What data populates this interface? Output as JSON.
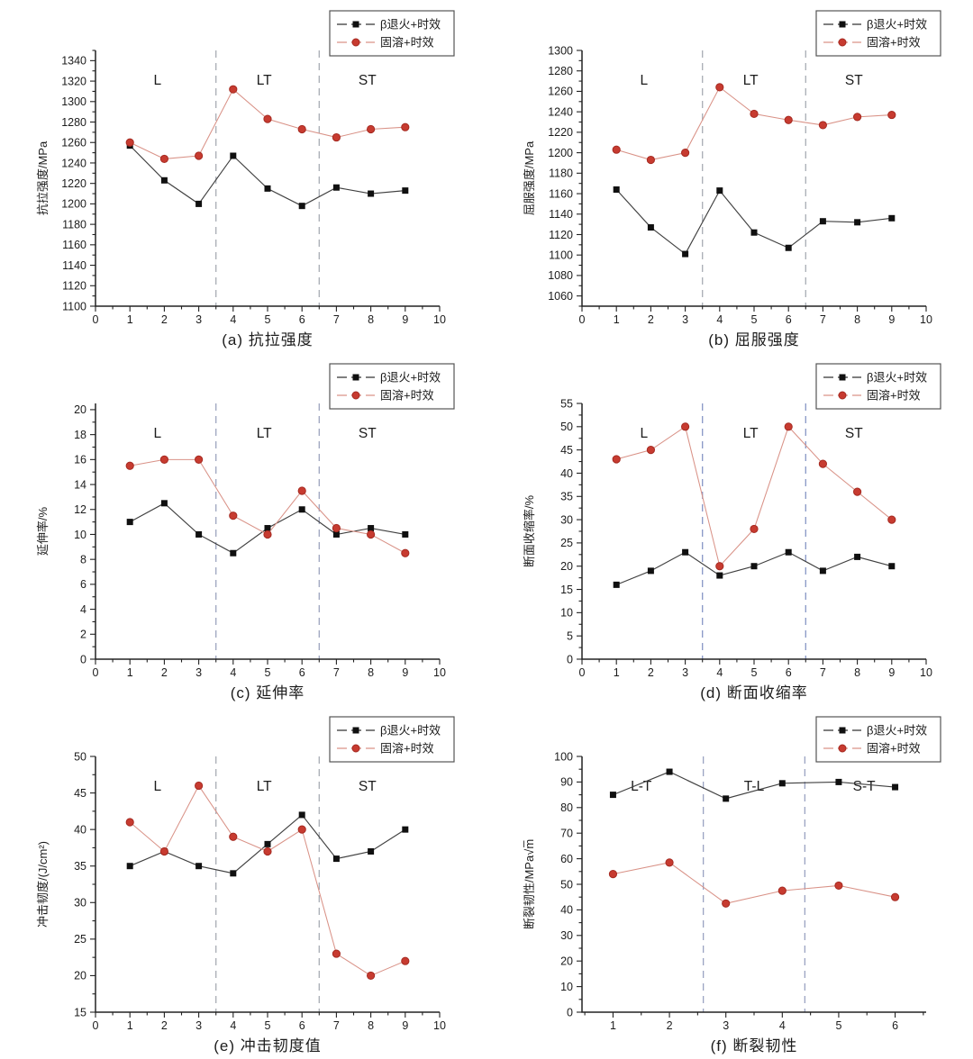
{
  "page": {
    "background": "#ffffff"
  },
  "colors": {
    "axis": "#222222",
    "text": "#1c1c1c",
    "legend_border": "#555555",
    "series_black": {
      "line": "#404040",
      "marker": "#101010"
    },
    "series_red": {
      "line": "#d99287",
      "marker": "#c73b30",
      "marker_edge": "#a52a21"
    }
  },
  "legend": {
    "items": [
      {
        "label": "β退火+时效",
        "marker": "square",
        "color": "#101010"
      },
      {
        "label": "固溶+时效",
        "marker": "circle",
        "color": "#c73b30"
      }
    ]
  },
  "chart_data": [
    {
      "id": "a",
      "type": "line",
      "caption": "(a) 抗拉强度",
      "ylabel": "抗拉强度/MPa",
      "xlabel": "",
      "xlim": [
        0,
        10
      ],
      "ylim": [
        1100,
        1350
      ],
      "xticks": [
        0,
        1,
        2,
        3,
        4,
        5,
        6,
        7,
        8,
        9,
        10
      ],
      "yticks": [
        1100,
        1120,
        1140,
        1160,
        1180,
        1200,
        1220,
        1240,
        1260,
        1280,
        1300,
        1320,
        1340
      ],
      "x_minor": 0.5,
      "y_minor": 10,
      "x": [
        1,
        2,
        3,
        4,
        5,
        6,
        7,
        8,
        9
      ],
      "series": [
        {
          "name": "β退火+时效",
          "marker": "square",
          "values": [
            1257,
            1223,
            1200,
            1247,
            1215,
            1198,
            1216,
            1210,
            1213
          ]
        },
        {
          "name": "固溶+时效",
          "marker": "circle",
          "values": [
            1260,
            1244,
            1247,
            1312,
            1283,
            1273,
            1265,
            1273,
            1275
          ]
        }
      ],
      "dividers": [
        3.5,
        6.5
      ],
      "divider_color": "#a8acb4",
      "regions": [
        {
          "label": "L",
          "x": 1.8
        },
        {
          "label": "LT",
          "x": 4.9
        },
        {
          "label": "ST",
          "x": 7.9
        }
      ]
    },
    {
      "id": "b",
      "type": "line",
      "caption": "(b) 屈服强度",
      "ylabel": "屈服强度/MPa",
      "xlabel": "",
      "xlim": [
        0,
        10
      ],
      "ylim": [
        1050,
        1300
      ],
      "xticks": [
        0,
        1,
        2,
        3,
        4,
        5,
        6,
        7,
        8,
        9,
        10
      ],
      "yticks": [
        1060,
        1080,
        1100,
        1120,
        1140,
        1160,
        1180,
        1200,
        1220,
        1240,
        1260,
        1280,
        1300
      ],
      "x_minor": 0.5,
      "y_minor": 10,
      "x": [
        1,
        2,
        3,
        4,
        5,
        6,
        7,
        8,
        9
      ],
      "series": [
        {
          "name": "β退火+时效",
          "marker": "square",
          "values": [
            1164,
            1127,
            1101,
            1163,
            1122,
            1107,
            1133,
            1132,
            1136
          ]
        },
        {
          "name": "固溶+时效",
          "marker": "circle",
          "values": [
            1203,
            1193,
            1200,
            1264,
            1238,
            1232,
            1227,
            1235,
            1237
          ]
        }
      ],
      "dividers": [
        3.5,
        6.5
      ],
      "divider_color": "#a8acb4",
      "regions": [
        {
          "label": "L",
          "x": 1.8
        },
        {
          "label": "LT",
          "x": 4.9
        },
        {
          "label": "ST",
          "x": 7.9
        }
      ]
    },
    {
      "id": "c",
      "type": "line",
      "caption": "(c) 延伸率",
      "ylabel": "延伸率/%",
      "xlabel": "",
      "xlim": [
        0,
        10
      ],
      "ylim": [
        0,
        20.5
      ],
      "xticks": [
        0,
        1,
        2,
        3,
        4,
        5,
        6,
        7,
        8,
        9,
        10
      ],
      "yticks": [
        0,
        2,
        4,
        6,
        8,
        10,
        12,
        14,
        16,
        18,
        20
      ],
      "x_minor": 0.5,
      "y_minor": 1,
      "x": [
        1,
        2,
        3,
        4,
        5,
        6,
        7,
        8,
        9
      ],
      "series": [
        {
          "name": "β退火+时效",
          "marker": "square",
          "values": [
            11,
            12.5,
            10,
            8.5,
            10.5,
            12,
            10,
            10.5,
            10
          ]
        },
        {
          "name": "固溶+时效",
          "marker": "circle",
          "values": [
            15.5,
            16,
            16,
            11.5,
            10,
            13.5,
            10.5,
            10,
            8.5
          ]
        }
      ],
      "dividers": [
        3.5,
        6.5
      ],
      "divider_color": "#9da5bf",
      "regions": [
        {
          "label": "L",
          "x": 1.8
        },
        {
          "label": "LT",
          "x": 4.9
        },
        {
          "label": "ST",
          "x": 7.9
        }
      ]
    },
    {
      "id": "d",
      "type": "line",
      "caption": "(d) 断面收缩率",
      "ylabel": "断面收缩率/%",
      "xlabel": "",
      "xlim": [
        0,
        10
      ],
      "ylim": [
        0,
        55
      ],
      "xticks": [
        0,
        1,
        2,
        3,
        4,
        5,
        6,
        7,
        8,
        9,
        10
      ],
      "yticks": [
        0,
        5,
        10,
        15,
        20,
        25,
        30,
        35,
        40,
        45,
        50,
        55
      ],
      "x_minor": 0.5,
      "y_minor": 2.5,
      "x": [
        1,
        2,
        3,
        4,
        5,
        6,
        7,
        8,
        9
      ],
      "series": [
        {
          "name": "β退火+时效",
          "marker": "square",
          "values": [
            16,
            19,
            23,
            18,
            20,
            23,
            19,
            22,
            20
          ]
        },
        {
          "name": "固溶+时效",
          "marker": "circle",
          "values": [
            43,
            45,
            50,
            20,
            28,
            50,
            42,
            36,
            30
          ]
        }
      ],
      "dividers": [
        3.5,
        6.5
      ],
      "divider_color": "#8696c6",
      "regions": [
        {
          "label": "L",
          "x": 1.8
        },
        {
          "label": "LT",
          "x": 4.9
        },
        {
          "label": "ST",
          "x": 7.9
        }
      ]
    },
    {
      "id": "e",
      "type": "line",
      "caption": "(e) 冲击韧度值",
      "ylabel": "冲击韧度/(J/cm²)",
      "xlabel": "",
      "xlim": [
        0,
        10
      ],
      "ylim": [
        15,
        50
      ],
      "xticks": [
        0,
        1,
        2,
        3,
        4,
        5,
        6,
        7,
        8,
        9,
        10
      ],
      "yticks": [
        15,
        20,
        25,
        30,
        35,
        40,
        45,
        50
      ],
      "x_minor": 0.5,
      "y_minor": 2.5,
      "x": [
        1,
        2,
        3,
        4,
        5,
        6,
        7,
        8,
        9
      ],
      "series": [
        {
          "name": "β退火+时效",
          "marker": "square",
          "values": [
            35,
            37,
            35,
            34,
            38,
            42,
            36,
            37,
            40
          ]
        },
        {
          "name": "固溶+时效",
          "marker": "circle",
          "values": [
            41,
            37,
            46,
            39,
            37,
            40,
            23,
            20,
            22
          ]
        }
      ],
      "dividers": [
        3.5,
        6.5
      ],
      "divider_color": "#a8acb4",
      "regions": [
        {
          "label": "L",
          "x": 1.8
        },
        {
          "label": "LT",
          "x": 4.9
        },
        {
          "label": "ST",
          "x": 7.9
        }
      ]
    },
    {
      "id": "f",
      "type": "line",
      "caption": "(f) 断裂韧性",
      "ylabel": "断裂韧性/MPa√m̅",
      "xlabel": "",
      "xlim": [
        0.45,
        6.55
      ],
      "ylim": [
        0,
        100
      ],
      "xticks": [
        1,
        2,
        3,
        4,
        5,
        6
      ],
      "yticks": [
        0,
        10,
        20,
        30,
        40,
        50,
        60,
        70,
        80,
        90,
        100
      ],
      "x_minor": 0.5,
      "y_minor": 5,
      "x": [
        1,
        2,
        3,
        4,
        5,
        6
      ],
      "series": [
        {
          "name": "β退火+时效",
          "marker": "square",
          "values": [
            85,
            94,
            83.5,
            89.5,
            90,
            88
          ]
        },
        {
          "name": "固溶+时效",
          "marker": "circle",
          "values": [
            54,
            58.5,
            42.5,
            47.5,
            49.5,
            45
          ]
        }
      ],
      "dividers": [
        2.6,
        4.4
      ],
      "divider_color": "#9aa3c2",
      "regions": [
        {
          "label": "L-T",
          "x": 1.5
        },
        {
          "label": "T-L",
          "x": 3.5
        },
        {
          "label": "S-T",
          "x": 5.45
        }
      ]
    }
  ]
}
